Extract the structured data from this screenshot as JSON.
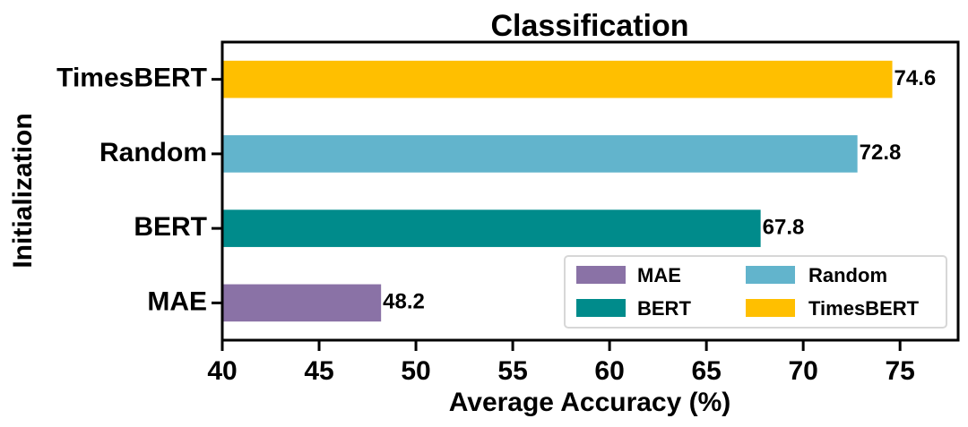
{
  "chart_data": {
    "type": "bar",
    "orientation": "horizontal",
    "title": "Classification",
    "xlabel": "Average Accuracy (%)",
    "ylabel": "Initialization",
    "xlim": [
      40,
      78
    ],
    "xticks": [
      40,
      45,
      50,
      55,
      60,
      65,
      70,
      75
    ],
    "categories": [
      "MAE",
      "BERT",
      "Random",
      "TimesBERT"
    ],
    "values": [
      48.2,
      67.8,
      72.8,
      74.6
    ],
    "value_labels": [
      "48.2",
      "67.8",
      "72.8",
      "74.6"
    ],
    "colors": [
      "#8a72a6",
      "#008b8b",
      "#62b4cc",
      "#ffbf00"
    ],
    "grid": false,
    "legend": {
      "placement": "lower-right",
      "columns": 2,
      "entries": [
        {
          "label": "MAE",
          "color": "#8a72a6"
        },
        {
          "label": "Random",
          "color": "#62b4cc"
        },
        {
          "label": "BERT",
          "color": "#008b8b"
        },
        {
          "label": "TimesBERT",
          "color": "#ffbf00"
        }
      ]
    }
  }
}
